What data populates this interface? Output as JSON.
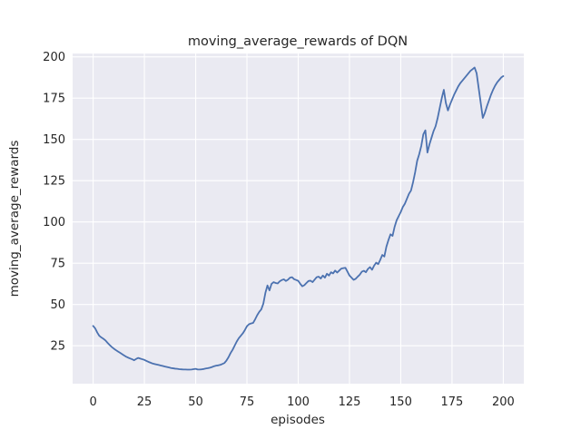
{
  "chart_data": {
    "type": "line",
    "title": "moving_average_rewards of DQN",
    "xlabel": "episodes",
    "ylabel": "moving_average_rewards",
    "x_ticks": [
      0,
      25,
      50,
      75,
      100,
      125,
      150,
      175,
      200
    ],
    "y_ticks": [
      25,
      50,
      75,
      100,
      125,
      150,
      175,
      200
    ],
    "xlim": [
      -10,
      210
    ],
    "ylim": [
      2,
      202
    ],
    "grid": true,
    "legend": "none",
    "line_color": "#4c72b0",
    "plot_bg_color": "#eaeaf2",
    "gridline_color": "#ffffff",
    "x_start": 0,
    "x_step": 1,
    "series": [
      {
        "name": "moving_average_rewards",
        "values": [
          37.0,
          35.5,
          33.0,
          31.0,
          30.0,
          29.2,
          28.2,
          26.8,
          25.5,
          24.3,
          23.3,
          22.4,
          21.6,
          20.8,
          20.0,
          19.2,
          18.4,
          17.8,
          17.3,
          16.8,
          16.2,
          17.0,
          17.6,
          17.2,
          16.8,
          16.4,
          15.8,
          15.2,
          14.7,
          14.2,
          13.9,
          13.6,
          13.3,
          13.0,
          12.7,
          12.4,
          12.1,
          11.8,
          11.5,
          11.3,
          11.1,
          11.0,
          10.8,
          10.7,
          10.6,
          10.6,
          10.5,
          10.5,
          10.6,
          10.8,
          11.0,
          10.6,
          10.6,
          10.7,
          10.9,
          11.2,
          11.4,
          11.7,
          12.1,
          12.6,
          12.9,
          13.1,
          13.4,
          13.9,
          14.5,
          16.0,
          18.0,
          20.5,
          22.5,
          25.0,
          27.5,
          29.5,
          31.0,
          32.5,
          34.5,
          36.8,
          38.0,
          38.5,
          38.8,
          41.0,
          43.5,
          45.5,
          47.0,
          50.5,
          57.0,
          61.5,
          58.5,
          62.5,
          63.5,
          63.0,
          62.7,
          64.0,
          64.8,
          65.2,
          64.2,
          65.0,
          66.2,
          66.5,
          65.3,
          64.8,
          64.3,
          62.5,
          61.0,
          61.7,
          63.0,
          64.2,
          64.4,
          63.5,
          65.0,
          66.5,
          66.8,
          65.7,
          67.5,
          66.2,
          68.6,
          67.5,
          69.5,
          68.8,
          70.5,
          69.3,
          70.5,
          71.7,
          72.0,
          72.2,
          69.9,
          67.5,
          66.2,
          64.9,
          65.5,
          66.8,
          68.0,
          69.8,
          70.4,
          69.5,
          71.5,
          72.6,
          71.0,
          73.5,
          75.3,
          74.4,
          77.0,
          80.0,
          79.0,
          85.0,
          89.0,
          92.5,
          91.5,
          97.0,
          101.0,
          103.5,
          106.0,
          109.0,
          111.0,
          114.0,
          117.0,
          119.0,
          124.0,
          130.0,
          137.0,
          141.0,
          146.0,
          153.0,
          155.5,
          142.0,
          147.0,
          151.0,
          155.0,
          158.0,
          163.0,
          169.0,
          175.0,
          180.0,
          172.0,
          167.5,
          171.0,
          174.0,
          177.0,
          179.5,
          182.0,
          184.0,
          185.5,
          187.0,
          188.5,
          190.0,
          191.5,
          192.5,
          193.5,
          190.0,
          181.0,
          172.0,
          163.0,
          166.0,
          170.0,
          173.5,
          177.0,
          180.0,
          182.5,
          184.5,
          186.0,
          187.5,
          188.3
        ]
      }
    ]
  }
}
